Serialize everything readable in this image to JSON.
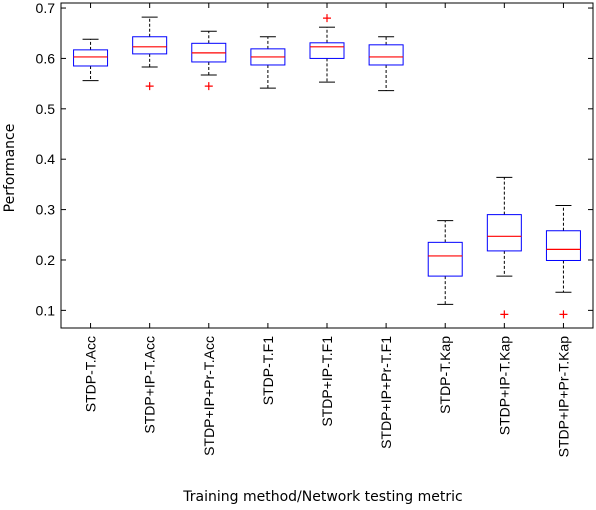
{
  "chart_data": {
    "type": "box",
    "xlabel": "Training method/Network testing metric",
    "ylabel": "Performance",
    "ylim": [
      0.065,
      0.71
    ],
    "yticks": [
      0.1,
      0.2,
      0.3,
      0.4,
      0.5,
      0.6,
      0.7
    ],
    "ytick_labels": [
      "0.1",
      "0.2",
      "0.3",
      "0.4",
      "0.5",
      "0.6",
      "0.7"
    ],
    "categories": [
      "STDP-T.Acc",
      "STDP+IP-T.Acc",
      "STDP+IP+Pr-T.Acc",
      "STDP-T.F1",
      "STDP+IP-T.F1",
      "STDP+IP+Pr-T.F1",
      "STDP-T.Kap",
      "STDP+IP-T.Kap",
      "STDP+IP+Pr-T.Kap"
    ],
    "boxes": [
      {
        "whisker_low": 0.556,
        "q1": 0.585,
        "median": 0.603,
        "q3": 0.617,
        "whisker_high": 0.638,
        "outliers": []
      },
      {
        "whisker_low": 0.583,
        "q1": 0.609,
        "median": 0.623,
        "q3": 0.643,
        "whisker_high": 0.682,
        "outliers": [
          0.545
        ]
      },
      {
        "whisker_low": 0.567,
        "q1": 0.593,
        "median": 0.611,
        "q3": 0.63,
        "whisker_high": 0.654,
        "outliers": [
          0.545
        ]
      },
      {
        "whisker_low": 0.541,
        "q1": 0.587,
        "median": 0.603,
        "q3": 0.619,
        "whisker_high": 0.643,
        "outliers": []
      },
      {
        "whisker_low": 0.553,
        "q1": 0.6,
        "median": 0.623,
        "q3": 0.631,
        "whisker_high": 0.662,
        "outliers": [
          0.68
        ]
      },
      {
        "whisker_low": 0.536,
        "q1": 0.587,
        "median": 0.603,
        "q3": 0.627,
        "whisker_high": 0.643,
        "outliers": []
      },
      {
        "whisker_low": 0.112,
        "q1": 0.168,
        "median": 0.208,
        "q3": 0.235,
        "whisker_high": 0.278,
        "outliers": []
      },
      {
        "whisker_low": 0.168,
        "q1": 0.218,
        "median": 0.247,
        "q3": 0.29,
        "whisker_high": 0.364,
        "outliers": [
          0.092
        ]
      },
      {
        "whisker_low": 0.136,
        "q1": 0.199,
        "median": 0.221,
        "q3": 0.258,
        "whisker_high": 0.308,
        "outliers": [
          0.092
        ]
      }
    ],
    "colors": {
      "box": "#0000ff",
      "median": "#ff0000",
      "whisker": "#000000",
      "outlier": "#ff0000"
    },
    "grid": false,
    "legend": "none"
  }
}
